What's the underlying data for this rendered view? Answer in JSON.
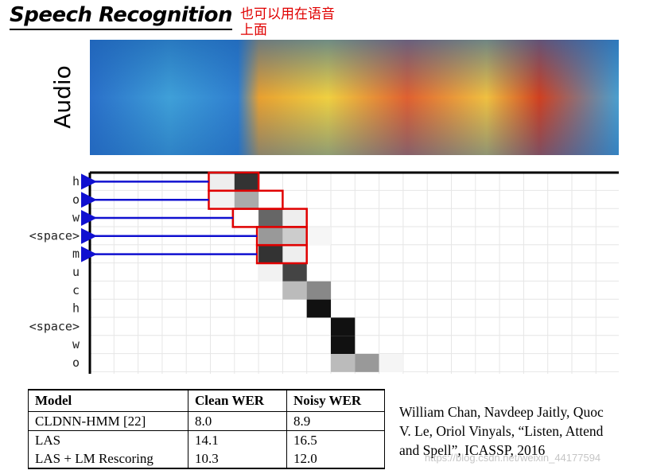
{
  "header": {
    "title": "Speech Recognition",
    "note_lines": [
      "也可以用在语音",
      "上面"
    ]
  },
  "figure": {
    "audio_label": "Audio",
    "attention_rows": [
      "h",
      "o",
      "w",
      "<space>",
      "m",
      "u",
      "c",
      "h",
      "<space>",
      "w",
      "o"
    ]
  },
  "table": {
    "columns": [
      "Model",
      "Clean WER",
      "Noisy WER"
    ],
    "rows": [
      [
        "CLDNN-HMM [22]",
        "8.0",
        "8.9"
      ],
      [
        "LAS",
        "14.1",
        "16.5"
      ],
      [
        "LAS + LM Rescoring",
        "10.3",
        "12.0"
      ]
    ]
  },
  "citation": {
    "lines": [
      "William Chan, Navdeep Jaitly, Quoc",
      "V. Le, Oriol Vinyals, “Listen, Attend",
      "and Spell”, ICASSP, 2016"
    ]
  },
  "watermark": "https://blog.csdn.net/weixin_44177594"
}
